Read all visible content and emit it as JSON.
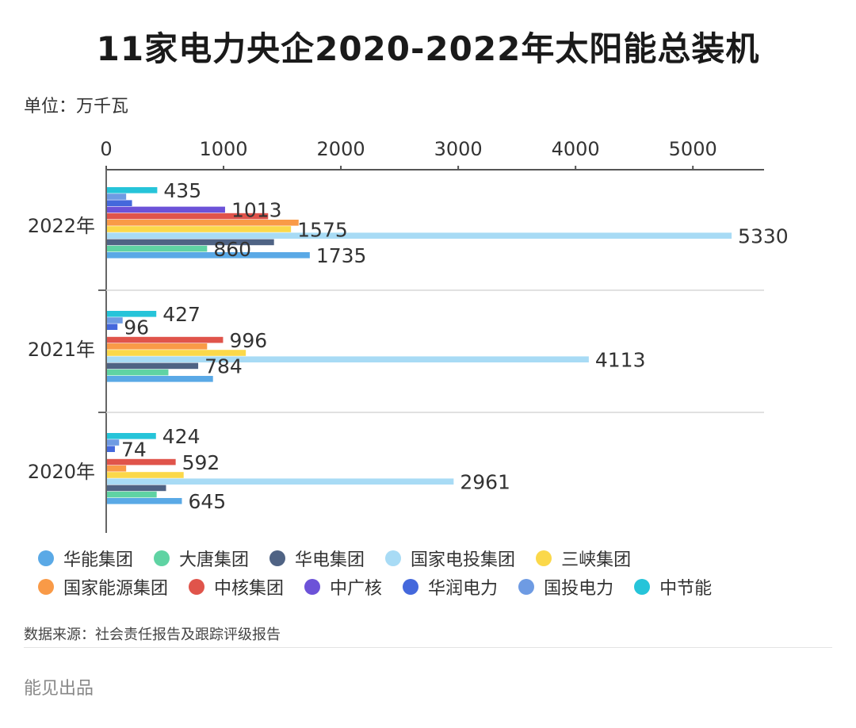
{
  "title": "11家电力央企2020-2022年太阳能总装机",
  "unit_label": "单位：万千瓦",
  "source_label": "数据来源：社会责任报告及跟踪评级报告",
  "brand_label": "能见出品",
  "colors": {
    "华能集团": "#5aa9e6",
    "大唐集团": "#5fd3a3",
    "华电集团": "#4f6384",
    "国家电投集团": "#a8dbf5",
    "三峡集团": "#fbd84a",
    "国家能源集团": "#f99a47",
    "中核集团": "#e0544b",
    "中广核": "#6c52d8",
    "华润电力": "#4468dc",
    "国投电力": "#6e9be3",
    "中节能": "#26c4d9"
  },
  "chart_data": {
    "type": "bar",
    "orientation": "horizontal",
    "title": "11家电力央企2020-2022年太阳能总装机",
    "unit": "万千瓦",
    "categories": [
      "2022年",
      "2021年",
      "2020年"
    ],
    "xlim": [
      0,
      5600
    ],
    "xticks": [
      "0",
      "1000",
      "2000",
      "3000",
      "4000",
      "5000"
    ],
    "xtick_values": [
      0,
      1000,
      2000,
      3000,
      4000,
      5000
    ],
    "axis_position": "top",
    "legend_position": "bottom",
    "series": [
      {
        "name": "华能集团",
        "values": [
          1735,
          910,
          645
        ],
        "labels": [
          "1735",
          "",
          "645"
        ]
      },
      {
        "name": "大唐集团",
        "values": [
          860,
          530,
          430
        ],
        "labels": [
          "860",
          "",
          ""
        ]
      },
      {
        "name": "华电集团",
        "values": [
          1430,
          784,
          510
        ],
        "labels": [
          "",
          "784",
          ""
        ]
      },
      {
        "name": "国家电投集团",
        "values": [
          5330,
          4113,
          2961
        ],
        "labels": [
          "5330",
          "4113",
          "2961"
        ]
      },
      {
        "name": "三峡集团",
        "values": [
          1575,
          1190,
          660
        ],
        "labels": [
          "1575",
          "",
          ""
        ]
      },
      {
        "name": "国家能源集团",
        "values": [
          1640,
          860,
          170
        ],
        "labels": [
          "",
          "",
          ""
        ]
      },
      {
        "name": "中核集团",
        "values": [
          1380,
          996,
          592
        ],
        "labels": [
          "",
          "996",
          "592"
        ]
      },
      {
        "name": "中广核",
        "values": [
          1013,
          0,
          0
        ],
        "labels": [
          "1013",
          "",
          ""
        ]
      },
      {
        "name": "华润电力",
        "values": [
          220,
          96,
          74
        ],
        "labels": [
          "",
          "96",
          "74"
        ]
      },
      {
        "name": "国投电力",
        "values": [
          170,
          140,
          110
        ],
        "labels": [
          "",
          "",
          ""
        ]
      },
      {
        "name": "中节能",
        "values": [
          435,
          427,
          424
        ],
        "labels": [
          "435",
          "427",
          "424"
        ]
      }
    ]
  },
  "legend_rows": [
    [
      "华能集团",
      "大唐集团",
      "华电集团",
      "国家电投集团",
      "三峡集团"
    ],
    [
      "国家能源集团",
      "中核集团",
      "中广核",
      "华润电力",
      "国投电力",
      "中节能"
    ]
  ]
}
